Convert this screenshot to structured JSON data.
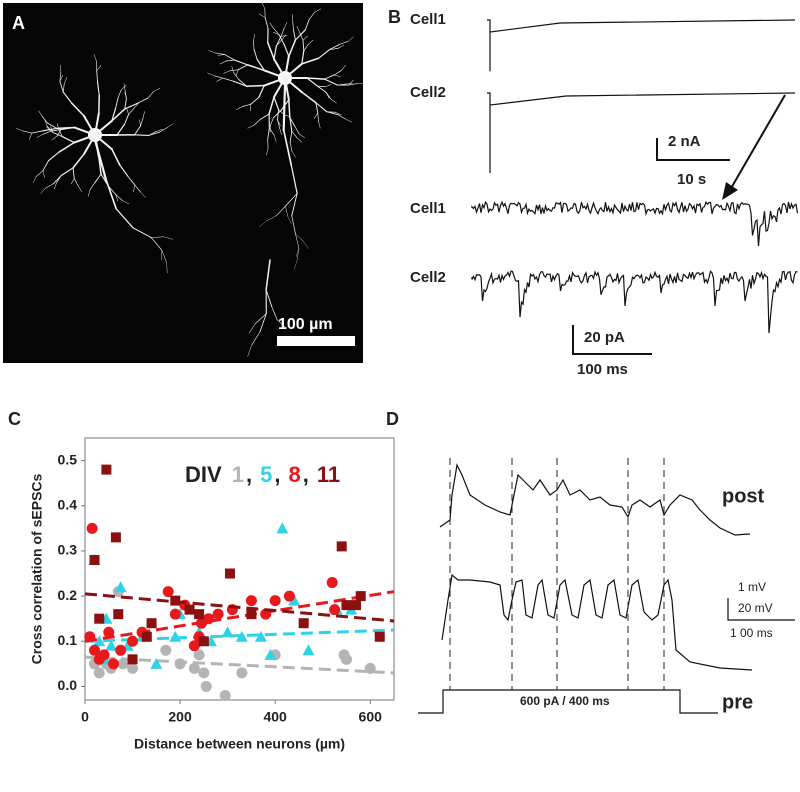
{
  "panels": {
    "a": {
      "label": "A",
      "scale_bar": "100 µm"
    },
    "b": {
      "label": "B",
      "cell1": "Cell1",
      "cell2": "Cell2",
      "amp_scale": "2 nA",
      "time_scale": "10 s",
      "zoom_cell1": "Cell1",
      "zoom_cell2": "Cell2",
      "zoom_amp_scale": "20 pA",
      "zoom_time_scale": "100 ms"
    },
    "d": {
      "label": "D",
      "post": "post",
      "pre": "pre",
      "scale_1": "1 mV",
      "scale_2": "20 mV",
      "scale_3": "1 00 ms",
      "stimulus": "600 pA / 400 ms"
    }
  },
  "chart_data": {
    "type": "scatter",
    "panel_label": "C",
    "xlabel": "Distance between neurons (µm)",
    "ylabel": "Cross correlation of sEPSCs",
    "legend_title": "DIV",
    "legend_separator": ",",
    "xlim": [
      0,
      650
    ],
    "ylim": [
      -0.03,
      0.55
    ],
    "xticks": [
      0,
      200,
      400,
      600
    ],
    "yticks": [
      {
        "value": 0,
        "label": "0.0"
      },
      0.1,
      0.2,
      0.3,
      0.4,
      0.5
    ],
    "series": [
      {
        "name": "1",
        "color": "#b4b4b4",
        "marker": "circle",
        "trend": [
          0.065,
          0.03
        ],
        "x": [
          20,
          30,
          45,
          55,
          70,
          80,
          100,
          170,
          200,
          230,
          240,
          250,
          255,
          295,
          330,
          400,
          545,
          550,
          600
        ],
        "y": [
          0.05,
          0.03,
          0.05,
          0.04,
          0.21,
          0.05,
          0.04,
          0.08,
          0.05,
          0.04,
          0.07,
          0.03,
          0.0,
          -0.02,
          0.03,
          0.07,
          0.07,
          0.06,
          0.04
        ]
      },
      {
        "name": "5",
        "color": "#2ed3e6",
        "marker": "triangle",
        "trend": [
          0.1,
          0.125
        ],
        "x": [
          20,
          30,
          40,
          45,
          55,
          75,
          90,
          120,
          150,
          190,
          200,
          240,
          265,
          300,
          330,
          370,
          390,
          415,
          440,
          470,
          530,
          560
        ],
        "y": [
          0.28,
          0.1,
          0.06,
          0.15,
          0.09,
          0.22,
          0.09,
          0.11,
          0.05,
          0.11,
          0.16,
          0.12,
          0.1,
          0.12,
          0.11,
          0.11,
          0.07,
          0.35,
          0.19,
          0.08,
          0.17,
          0.17
        ]
      },
      {
        "name": "8",
        "color": "#e8181c",
        "marker": "circle",
        "trend": [
          0.1,
          0.21
        ],
        "x": [
          15,
          10,
          20,
          30,
          40,
          50,
          60,
          75,
          100,
          120,
          175,
          190,
          210,
          230,
          240,
          245,
          260,
          280,
          310,
          350,
          380,
          400,
          430,
          520,
          525
        ],
        "y": [
          0.35,
          0.11,
          0.08,
          0.06,
          0.07,
          0.12,
          0.05,
          0.08,
          0.1,
          0.12,
          0.21,
          0.16,
          0.18,
          0.09,
          0.11,
          0.14,
          0.15,
          0.16,
          0.17,
          0.19,
          0.16,
          0.19,
          0.2,
          0.23,
          0.17
        ]
      },
      {
        "name": "11",
        "color": "#8b1010",
        "marker": "square",
        "trend": [
          0.205,
          0.145
        ],
        "x": [
          45,
          65,
          20,
          30,
          70,
          100,
          130,
          140,
          190,
          220,
          240,
          250,
          305,
          350,
          460,
          540,
          550,
          570,
          580,
          620
        ],
        "y": [
          0.48,
          0.33,
          0.28,
          0.15,
          0.16,
          0.06,
          0.11,
          0.14,
          0.19,
          0.17,
          0.16,
          0.1,
          0.25,
          0.16,
          0.14,
          0.31,
          0.18,
          0.18,
          0.2,
          0.11
        ]
      }
    ]
  }
}
